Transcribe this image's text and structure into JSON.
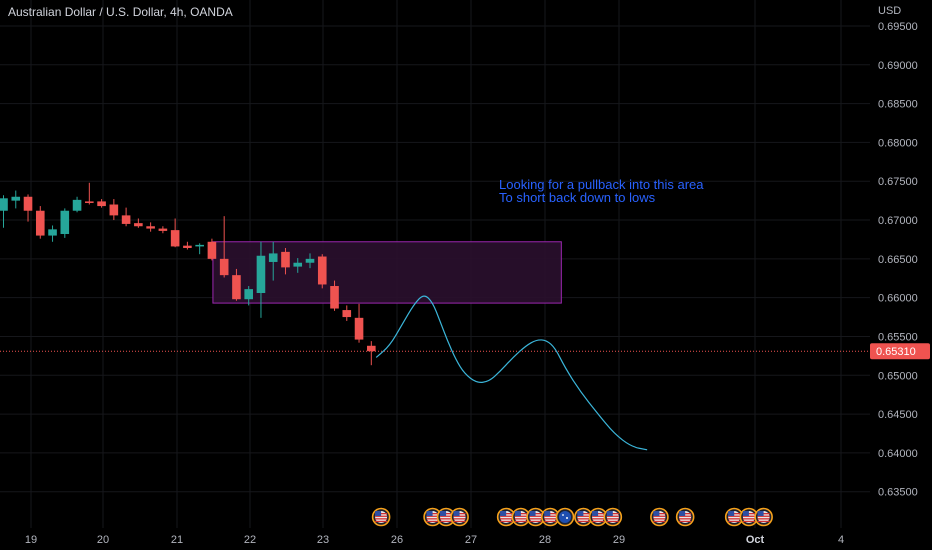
{
  "header": {
    "symbol_title": "Australian Dollar / U.S. Dollar, 4h, OANDA",
    "currency": "USD"
  },
  "colors": {
    "up": "#26a69a",
    "down": "#ef5350",
    "zone_fill": "#2a0f2e",
    "zone_stroke": "#9c27b0",
    "projection": "#3bb5d9",
    "annotation": "#2962ff",
    "grid": "#16171b",
    "price_line": "#ef5350"
  },
  "annotation": {
    "line1": "Looking for a pullback into this area",
    "line2": "To short back down to lows"
  },
  "current_price": {
    "label": "0.65310",
    "value": 0.6531
  },
  "chart_data": {
    "type": "candlestick",
    "title": "Australian Dollar / U.S. Dollar, 4h, OANDA",
    "ylabel": "USD",
    "ylim": [
      0.6315,
      0.6965
    ],
    "grid": true,
    "x_tick_labels": [
      "19",
      "20",
      "21",
      "22",
      "23",
      "26",
      "27",
      "28",
      "29",
      "Oct",
      "4"
    ],
    "y_tick_labels": [
      "0.69500",
      "0.69000",
      "0.68500",
      "0.68000",
      "0.67500",
      "0.67000",
      "0.66500",
      "0.66000",
      "0.65500",
      "0.65000",
      "0.64500",
      "0.64000",
      "0.63500"
    ],
    "candles": [
      {
        "o": 0.6712,
        "h": 0.6732,
        "l": 0.669,
        "c": 0.6728
      },
      {
        "o": 0.6725,
        "h": 0.6738,
        "l": 0.6715,
        "c": 0.673
      },
      {
        "o": 0.673,
        "h": 0.6733,
        "l": 0.6698,
        "c": 0.6712
      },
      {
        "o": 0.6712,
        "h": 0.6718,
        "l": 0.6676,
        "c": 0.668
      },
      {
        "o": 0.668,
        "h": 0.6693,
        "l": 0.6672,
        "c": 0.6688
      },
      {
        "o": 0.6682,
        "h": 0.6715,
        "l": 0.6677,
        "c": 0.6712
      },
      {
        "o": 0.6712,
        "h": 0.673,
        "l": 0.671,
        "c": 0.6726
      },
      {
        "o": 0.6724,
        "h": 0.6748,
        "l": 0.672,
        "c": 0.6722
      },
      {
        "o": 0.6724,
        "h": 0.6727,
        "l": 0.6716,
        "c": 0.6718
      },
      {
        "o": 0.672,
        "h": 0.6727,
        "l": 0.67,
        "c": 0.6706
      },
      {
        "o": 0.6706,
        "h": 0.6716,
        "l": 0.6692,
        "c": 0.6695
      },
      {
        "o": 0.6696,
        "h": 0.6702,
        "l": 0.669,
        "c": 0.6692
      },
      {
        "o": 0.6692,
        "h": 0.6697,
        "l": 0.6685,
        "c": 0.6689
      },
      {
        "o": 0.6689,
        "h": 0.6692,
        "l": 0.6683,
        "c": 0.6686
      },
      {
        "o": 0.6687,
        "h": 0.6702,
        "l": 0.6665,
        "c": 0.6666
      },
      {
        "o": 0.6667,
        "h": 0.6672,
        "l": 0.6662,
        "c": 0.6664
      },
      {
        "o": 0.6666,
        "h": 0.667,
        "l": 0.6656,
        "c": 0.6668
      },
      {
        "o": 0.6672,
        "h": 0.6676,
        "l": 0.6648,
        "c": 0.665
      },
      {
        "o": 0.665,
        "h": 0.6705,
        "l": 0.6626,
        "c": 0.6629
      },
      {
        "o": 0.6629,
        "h": 0.6637,
        "l": 0.6596,
        "c": 0.6598
      },
      {
        "o": 0.6598,
        "h": 0.6615,
        "l": 0.659,
        "c": 0.6611
      },
      {
        "o": 0.6606,
        "h": 0.6672,
        "l": 0.6574,
        "c": 0.6654
      },
      {
        "o": 0.6646,
        "h": 0.6672,
        "l": 0.6622,
        "c": 0.6657
      },
      {
        "o": 0.6659,
        "h": 0.6664,
        "l": 0.663,
        "c": 0.6639
      },
      {
        "o": 0.664,
        "h": 0.6651,
        "l": 0.6632,
        "c": 0.6645
      },
      {
        "o": 0.6645,
        "h": 0.6657,
        "l": 0.6638,
        "c": 0.665
      },
      {
        "o": 0.6653,
        "h": 0.6656,
        "l": 0.6612,
        "c": 0.6617
      },
      {
        "o": 0.6615,
        "h": 0.6622,
        "l": 0.6583,
        "c": 0.6586
      },
      {
        "o": 0.6584,
        "h": 0.659,
        "l": 0.657,
        "c": 0.6575
      },
      {
        "o": 0.6574,
        "h": 0.6592,
        "l": 0.6542,
        "c": 0.6546
      },
      {
        "o": 0.6538,
        "h": 0.6544,
        "l": 0.6513,
        "c": 0.6531
      }
    ],
    "zone": {
      "x_start_candle": 17,
      "x_end_candle": 45.5,
      "y_top": 0.6672,
      "y_bottom": 0.6593
    },
    "projection": [
      [
        30.4,
        0.6523
      ],
      [
        31.5,
        0.6538
      ],
      [
        32.5,
        0.6565
      ],
      [
        33.5,
        0.6592
      ],
      [
        34.3,
        0.6605
      ],
      [
        35.0,
        0.6594
      ],
      [
        35.6,
        0.657
      ],
      [
        36.2,
        0.6545
      ],
      [
        36.9,
        0.652
      ],
      [
        37.6,
        0.6502
      ],
      [
        38.6,
        0.649
      ],
      [
        39.6,
        0.6492
      ],
      [
        40.5,
        0.6505
      ],
      [
        41.5,
        0.6522
      ],
      [
        42.6,
        0.6538
      ],
      [
        43.5,
        0.6546
      ],
      [
        44.3,
        0.6545
      ],
      [
        45.0,
        0.6535
      ],
      [
        45.8,
        0.651
      ],
      [
        47.0,
        0.648
      ],
      [
        48.5,
        0.645
      ],
      [
        49.8,
        0.6425
      ],
      [
        51.2,
        0.6408
      ],
      [
        52.5,
        0.6404
      ]
    ],
    "events": [
      {
        "candle": 30.8,
        "flag": "us"
      },
      {
        "candle": 35.0,
        "flag": "us"
      },
      {
        "candle": 36.1,
        "flag": "us"
      },
      {
        "candle": 37.2,
        "flag": "us"
      },
      {
        "candle": 41.0,
        "flag": "us"
      },
      {
        "candle": 42.2,
        "flag": "us"
      },
      {
        "candle": 43.4,
        "flag": "us"
      },
      {
        "candle": 44.6,
        "flag": "us"
      },
      {
        "candle": 45.8,
        "flag": "au"
      },
      {
        "candle": 47.3,
        "flag": "us"
      },
      {
        "candle": 48.5,
        "flag": "us"
      },
      {
        "candle": 49.7,
        "flag": "us"
      },
      {
        "candle": 53.5,
        "flag": "us"
      },
      {
        "candle": 55.6,
        "flag": "us"
      },
      {
        "candle": 59.6,
        "flag": "us"
      },
      {
        "candle": 60.8,
        "flag": "us"
      },
      {
        "candle": 62.0,
        "flag": "us"
      }
    ]
  }
}
